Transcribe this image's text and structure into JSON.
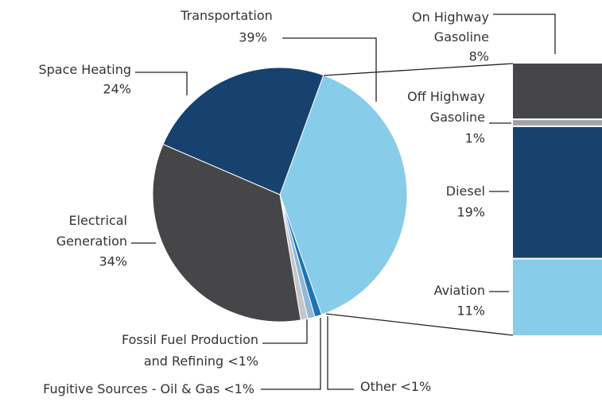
{
  "chart_data": [
    {
      "type": "pie",
      "categories": [
        [
          "Transportation"
        ],
        [
          "Other"
        ],
        [
          "Fugitive Sources - Oil & Gas"
        ],
        [
          "Fossil Fuel Production",
          "and Refining"
        ],
        [
          "Electrical",
          "Generation"
        ],
        [
          "Space Heating"
        ]
      ],
      "values": [
        39,
        0.9,
        0.9,
        0.9,
        34,
        24
      ],
      "value_labels": [
        "39%",
        "<1%",
        "<1%",
        "<1%",
        "34%",
        "24%"
      ],
      "colors": [
        "#87cce8",
        "#1b74b4",
        "#8fb8d8",
        "#c4c6c8",
        "#464648",
        "#17416e"
      ]
    },
    {
      "type": "stacked-bar",
      "categories": [
        [
          "On Highway",
          "Gasoline"
        ],
        [
          "Off Highway",
          "Gasoline"
        ],
        [
          "Diesel"
        ],
        [
          "Aviation"
        ]
      ],
      "values": [
        8,
        1,
        19,
        11
      ],
      "value_labels": [
        "8%",
        "1%",
        "19%",
        "11%"
      ],
      "colors": [
        "#464648",
        "#a0a4a8",
        "#17416e",
        "#87cce8"
      ]
    }
  ]
}
